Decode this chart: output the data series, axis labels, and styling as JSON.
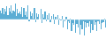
{
  "values": [
    2.1,
    1.5,
    2.8,
    1.2,
    2.5,
    1.8,
    3.2,
    1.0,
    2.8,
    2.0,
    3.5,
    1.5,
    2.2,
    1.8,
    3.8,
    0.8,
    2.5,
    1.5,
    2.0,
    1.2,
    3.0,
    0.5,
    2.8,
    1.0,
    1.8,
    0.5,
    3.5,
    -0.5,
    2.0,
    0.8,
    1.5,
    0.2,
    2.8,
    -0.8,
    1.5,
    0.5,
    1.2,
    0.0,
    2.5,
    -1.0,
    1.2,
    0.3,
    1.8,
    -0.5,
    1.0,
    0.2,
    1.5,
    -0.8,
    0.8,
    0.0,
    1.2,
    -1.2,
    0.5,
    0.0,
    1.0,
    -1.5,
    0.2,
    -0.3,
    0.8,
    -2.0,
    0.0,
    -0.5,
    0.5,
    -2.5,
    -0.5,
    -1.0,
    0.2,
    -3.0,
    -1.0,
    -1.5,
    0.0,
    -3.5,
    -1.2,
    -2.0,
    -0.2,
    -3.8,
    -1.5,
    -2.5,
    -0.5,
    -4.2,
    -0.8,
    -2.2,
    -1.0,
    -1.8,
    -0.5,
    -3.5,
    -1.2,
    -2.8,
    -0.3,
    -1.5,
    -0.8,
    -3.0,
    -0.5,
    -1.2,
    -0.2,
    -2.5,
    -1.0,
    -0.8,
    0.2,
    -2.0
  ],
  "bar_color": "#5badd4",
  "background_color": "#ffffff",
  "ylim": [
    -5.0,
    5.0
  ]
}
